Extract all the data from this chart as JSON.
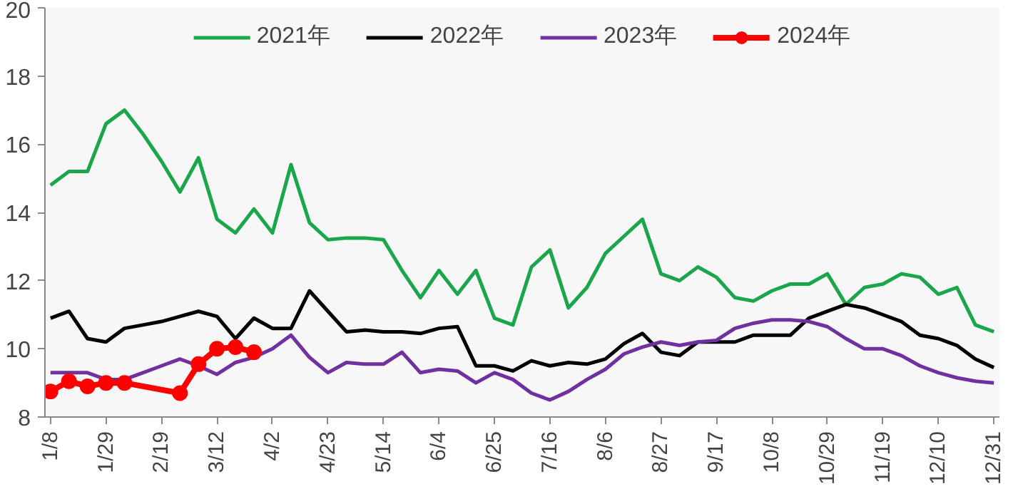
{
  "chart_data": {
    "type": "line",
    "categories": [
      "1/8",
      null,
      null,
      "1/29",
      null,
      null,
      "2/19",
      null,
      null,
      "3/12",
      null,
      null,
      "4/2",
      null,
      null,
      "4/23",
      null,
      null,
      "5/14",
      null,
      null,
      "6/4",
      null,
      null,
      "6/25",
      null,
      null,
      "7/16",
      null,
      null,
      "8/6",
      null,
      null,
      "8/27",
      null,
      null,
      "9/17",
      null,
      null,
      "10/8",
      null,
      null,
      "10/29",
      null,
      null,
      "11/19",
      null,
      null,
      "12/10",
      null,
      null,
      "12/31"
    ],
    "series": [
      {
        "name": "2021年",
        "color": "#1aa64a",
        "values": [
          14.8,
          15.2,
          15.2,
          16.6,
          17.0,
          16.3,
          15.5,
          14.6,
          15.6,
          13.8,
          13.4,
          14.1,
          13.4,
          15.4,
          13.7,
          13.2,
          13.25,
          13.25,
          13.2,
          12.3,
          11.5,
          12.3,
          11.6,
          12.3,
          10.9,
          10.7,
          12.4,
          12.9,
          11.2,
          11.8,
          12.8,
          13.3,
          13.8,
          12.2,
          12.0,
          12.4,
          12.1,
          11.5,
          11.4,
          11.7,
          11.9,
          11.9,
          12.2,
          11.3,
          11.8,
          11.9,
          12.2,
          12.1,
          11.6,
          11.8,
          10.7,
          10.5
        ]
      },
      {
        "name": "2022年",
        "color": "#000000",
        "values": [
          10.9,
          11.1,
          10.3,
          10.2,
          10.6,
          10.7,
          10.8,
          10.95,
          11.1,
          10.95,
          10.3,
          10.9,
          10.6,
          10.6,
          11.7,
          11.1,
          10.5,
          10.55,
          10.5,
          10.5,
          10.45,
          10.6,
          10.65,
          9.5,
          9.5,
          9.35,
          9.65,
          9.5,
          9.6,
          9.55,
          9.7,
          10.15,
          10.45,
          9.9,
          9.8,
          10.2,
          10.2,
          10.2,
          10.4,
          10.4,
          10.4,
          10.9,
          11.1,
          11.3,
          11.2,
          11.0,
          10.8,
          10.4,
          10.3,
          10.1,
          9.7,
          9.45
        ]
      },
      {
        "name": "2023年",
        "color": "#7030a0",
        "values": [
          9.3,
          9.3,
          9.3,
          9.1,
          9.1,
          9.3,
          9.5,
          9.7,
          9.5,
          9.25,
          9.6,
          9.75,
          10.0,
          10.4,
          9.75,
          9.3,
          9.6,
          9.55,
          9.55,
          9.9,
          9.3,
          9.4,
          9.35,
          9.0,
          9.3,
          9.1,
          8.7,
          8.5,
          8.75,
          9.1,
          9.4,
          9.85,
          10.05,
          10.2,
          10.1,
          10.2,
          10.25,
          10.6,
          10.75,
          10.85,
          10.85,
          10.8,
          10.65,
          10.3,
          10.0,
          10.0,
          9.8,
          9.5,
          9.3,
          9.15,
          9.05,
          9.0
        ]
      },
      {
        "name": "2024年",
        "color": "#ff0000",
        "marker": "circle",
        "values": [
          8.75,
          9.05,
          8.9,
          9.0,
          9.0,
          null,
          null,
          8.7,
          9.55,
          10.0,
          10.05,
          9.9,
          null,
          null,
          null,
          null,
          null,
          null,
          null,
          null,
          null,
          null,
          null,
          null,
          null,
          null,
          null,
          null,
          null,
          null,
          null,
          null,
          null,
          null,
          null,
          null,
          null,
          null,
          null,
          null,
          null,
          null,
          null,
          null,
          null,
          null,
          null,
          null,
          null,
          null,
          null,
          null
        ]
      }
    ],
    "ylim": [
      8,
      20
    ],
    "yticks": [
      8,
      10,
      12,
      14,
      16,
      18,
      20
    ],
    "grid": false,
    "legend": "top"
  }
}
